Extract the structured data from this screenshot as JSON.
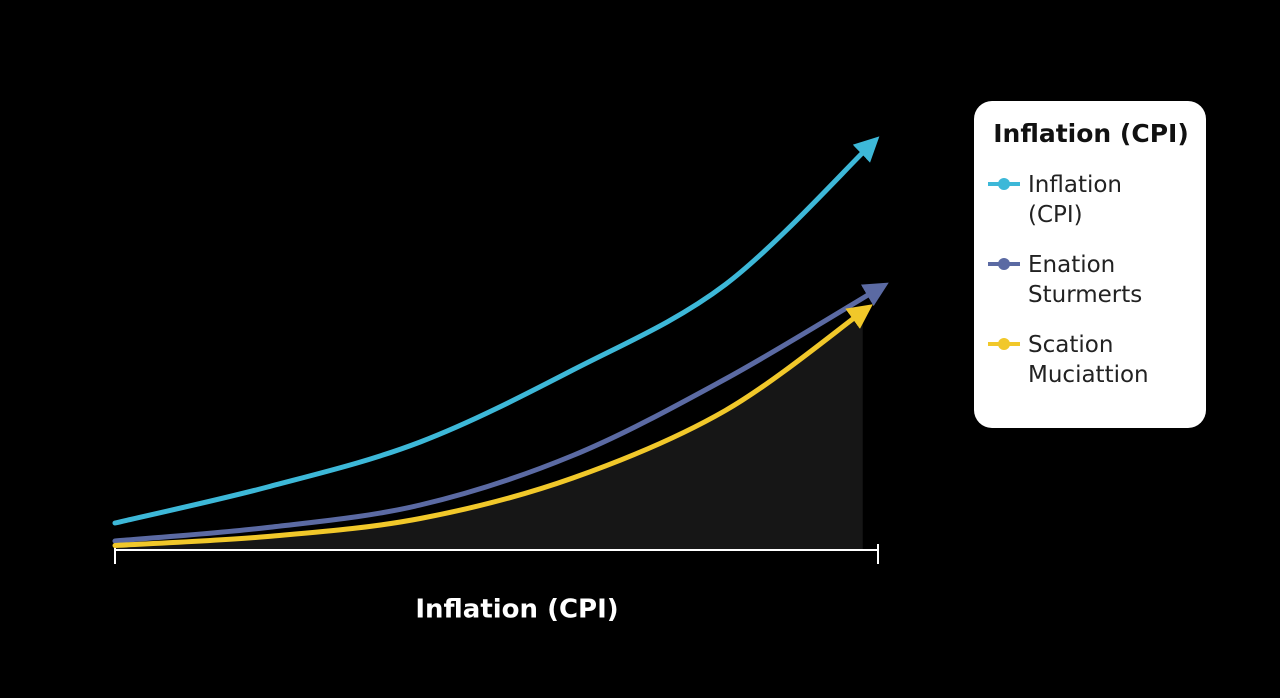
{
  "chart_data": {
    "type": "line",
    "x_label": "Inflation (CPI)",
    "legend_title": "Inflation (CPI)",
    "legend": "right",
    "xlim": [
      0,
      10
    ],
    "ylim": [
      0,
      100
    ],
    "area_under_last": true,
    "area_color": "#161616",
    "series": [
      {
        "name": "Inflation (CPI)",
        "color": "#3db8d8",
        "x": [
          0,
          2,
          4,
          6,
          8,
          9.9
        ],
        "values": [
          6,
          14,
          24,
          40,
          59,
          90
        ]
      },
      {
        "name": "Enation Sturmerts",
        "color": "#5b6aa3",
        "x": [
          0,
          2,
          4,
          6,
          8,
          10
        ],
        "values": [
          2,
          5,
          10,
          21,
          38,
          58
        ]
      },
      {
        "name": "Scation Muciattion",
        "color": "#f1c82a",
        "x": [
          0,
          2,
          4,
          6,
          8,
          9.8
        ],
        "values": [
          1,
          3,
          7,
          16,
          31,
          53
        ]
      }
    ]
  }
}
